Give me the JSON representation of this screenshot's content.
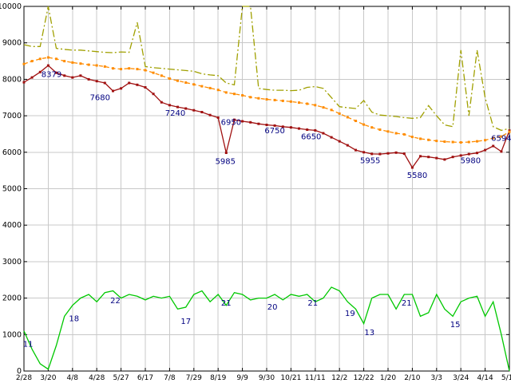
{
  "chart_data": {
    "type": "line",
    "title": "",
    "xlabel": "",
    "ylabel": "",
    "ylim": [
      0,
      10000
    ],
    "y_tick_step": 1000,
    "grid": true,
    "legend_position": "none",
    "x_tick_labels": [
      "2/28",
      "3/20",
      "4/8",
      "4/28",
      "5/27",
      "6/17",
      "7/8",
      "7/29",
      "8/19",
      "9/9",
      "9/30",
      "10/21",
      "11/11",
      "12/2",
      "12/22",
      "1/20",
      "2/10",
      "3/3",
      "3/24",
      "4/14",
      "5/12"
    ],
    "x_tick_step": 3,
    "annotation_color": "#000080",
    "series": [
      {
        "name": "weekly-value-red",
        "color": "#a01010",
        "style": "solid",
        "marker": "square",
        "values": [
          7920,
          8050,
          8200,
          8379,
          8180,
          8100,
          8050,
          8100,
          8000,
          7950,
          7900,
          7680,
          7750,
          7900,
          7850,
          7780,
          7600,
          7370,
          7290,
          7240,
          7200,
          7150,
          7100,
          7020,
          6950,
          5985,
          6890,
          6850,
          6820,
          6780,
          6750,
          6730,
          6700,
          6680,
          6650,
          6620,
          6600,
          6520,
          6410,
          6300,
          6190,
          6060,
          6000,
          5955,
          5950,
          5970,
          5990,
          5960,
          5580,
          5890,
          5870,
          5840,
          5800,
          5870,
          5910,
          5950,
          5980,
          6060,
          6170,
          6020,
          6594
        ]
      },
      {
        "name": "smoothed-average-orange",
        "color": "#ff8c00",
        "style": "dashed",
        "marker": "square",
        "values": [
          8420,
          8500,
          8560,
          8600,
          8560,
          8500,
          8460,
          8430,
          8400,
          8380,
          8350,
          8300,
          8280,
          8300,
          8280,
          8250,
          8180,
          8100,
          8020,
          7960,
          7910,
          7860,
          7810,
          7760,
          7710,
          7640,
          7600,
          7560,
          7510,
          7480,
          7450,
          7430,
          7410,
          7390,
          7360,
          7330,
          7290,
          7230,
          7160,
          7060,
          6960,
          6860,
          6760,
          6680,
          6620,
          6570,
          6520,
          6490,
          6420,
          6370,
          6340,
          6310,
          6290,
          6280,
          6270,
          6280,
          6300,
          6330,
          6390,
          6430,
          6560
        ]
      },
      {
        "name": "upper-band-olive",
        "color": "#a0a000",
        "style": "dashdot",
        "marker": "none",
        "values": [
          8950,
          8900,
          8900,
          10000,
          8850,
          8820,
          8800,
          8800,
          8780,
          8760,
          8740,
          8730,
          8750,
          8740,
          9560,
          8350,
          8320,
          8300,
          8280,
          8260,
          8240,
          8220,
          8150,
          8120,
          8100,
          7900,
          7850,
          10000,
          10000,
          7750,
          7720,
          7700,
          7700,
          7690,
          7700,
          7780,
          7800,
          7750,
          7500,
          7250,
          7220,
          7200,
          7420,
          7100,
          7020,
          7000,
          6980,
          6950,
          6930,
          6950,
          7280,
          7000,
          6750,
          6700,
          8800,
          7000,
          8800,
          7500,
          6700,
          6600,
          6650
        ]
      },
      {
        "name": "count-green",
        "color": "#00c800",
        "style": "solid",
        "marker": "none",
        "values": [
          1100,
          600,
          200,
          50,
          700,
          1500,
          1800,
          2000,
          2100,
          1900,
          2150,
          2200,
          2000,
          2100,
          2050,
          1950,
          2050,
          2000,
          2050,
          1700,
          1750,
          2100,
          2200,
          1900,
          2100,
          1800,
          2150,
          2100,
          1950,
          2000,
          2000,
          2100,
          1950,
          2100,
          2050,
          2100,
          1900,
          2000,
          2300,
          2200,
          1900,
          1700,
          1300,
          2000,
          2100,
          2100,
          1700,
          2100,
          2100,
          1500,
          1600,
          2100,
          1700,
          1500,
          1900,
          2000,
          2050,
          1500,
          1900,
          1000,
          0
        ]
      }
    ],
    "annotations": [
      {
        "text": "8379",
        "x": 3.4,
        "y": 8130
      },
      {
        "text": "7680",
        "x": 9.4,
        "y": 7500
      },
      {
        "text": "7240",
        "x": 18.7,
        "y": 7070
      },
      {
        "text": "6950",
        "x": 25.6,
        "y": 6820
      },
      {
        "text": "5985",
        "x": 24.9,
        "y": 5740
      },
      {
        "text": "6750",
        "x": 31.0,
        "y": 6590
      },
      {
        "text": "6650",
        "x": 35.5,
        "y": 6420
      },
      {
        "text": "5955",
        "x": 42.8,
        "y": 5770
      },
      {
        "text": "5580",
        "x": 48.6,
        "y": 5360
      },
      {
        "text": "5980",
        "x": 55.2,
        "y": 5770
      },
      {
        "text": "6594",
        "x": 59.0,
        "y": 6380
      },
      {
        "text": "11",
        "x": 0.5,
        "y": 730
      },
      {
        "text": "18",
        "x": 6.2,
        "y": 1430
      },
      {
        "text": "22",
        "x": 11.3,
        "y": 1930
      },
      {
        "text": "17",
        "x": 20.0,
        "y": 1360
      },
      {
        "text": "21",
        "x": 25.0,
        "y": 1860
      },
      {
        "text": "20",
        "x": 30.7,
        "y": 1750
      },
      {
        "text": "21",
        "x": 35.7,
        "y": 1860
      },
      {
        "text": "19",
        "x": 40.3,
        "y": 1580
      },
      {
        "text": "13",
        "x": 42.7,
        "y": 1050
      },
      {
        "text": "21",
        "x": 47.3,
        "y": 1860
      },
      {
        "text": "15",
        "x": 53.3,
        "y": 1270
      }
    ]
  }
}
